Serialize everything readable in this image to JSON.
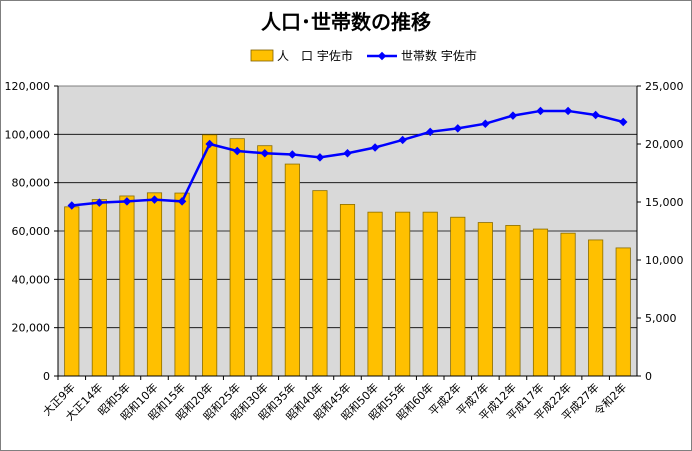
{
  "chart_data": {
    "type": "bar+line",
    "title": "人口･世帯数の推移",
    "categories": [
      "大正9年",
      "大正14年",
      "昭和5年",
      "昭和10年",
      "昭和15年",
      "昭和20年",
      "昭和25年",
      "昭和30年",
      "昭和35年",
      "昭和40年",
      "昭和45年",
      "昭和50年",
      "昭和55年",
      "昭和60年",
      "平成2年",
      "平成7年",
      "平成12年",
      "平成17年",
      "平成22年",
      "平成27年",
      "令和2年"
    ],
    "series": [
      {
        "name": "人　口 宇佐市",
        "type": "bar",
        "axis": "left",
        "color": "#FFC000",
        "values": [
          70000,
          73000,
          74500,
          75800,
          75700,
          99800,
          98200,
          95300,
          87700,
          76700,
          71000,
          67800,
          67800,
          67800,
          65700,
          63500,
          62300,
          60800,
          59100,
          56300,
          53000
        ]
      },
      {
        "name": "世帯数 宇佐市",
        "type": "line",
        "axis": "right",
        "color": "#0000FF",
        "values": [
          14700,
          14950,
          15050,
          15200,
          15050,
          20000,
          19400,
          19200,
          19100,
          18850,
          19200,
          19700,
          20350,
          21050,
          21350,
          21750,
          22450,
          22850,
          22850,
          22500,
          21900
        ]
      }
    ],
    "y_left": {
      "ylim": [
        0,
        120000
      ],
      "ticks": [
        "0",
        "20,000",
        "40,000",
        "60,000",
        "80,000",
        "100,000",
        "120,000"
      ]
    },
    "y_right": {
      "ylim": [
        0,
        25000
      ],
      "ticks": [
        "0",
        "5,000",
        "10,000",
        "15,000",
        "20,000",
        "25,000"
      ]
    },
    "grid": true,
    "legend": "top-center",
    "plot_background": "#D9D9D9"
  }
}
